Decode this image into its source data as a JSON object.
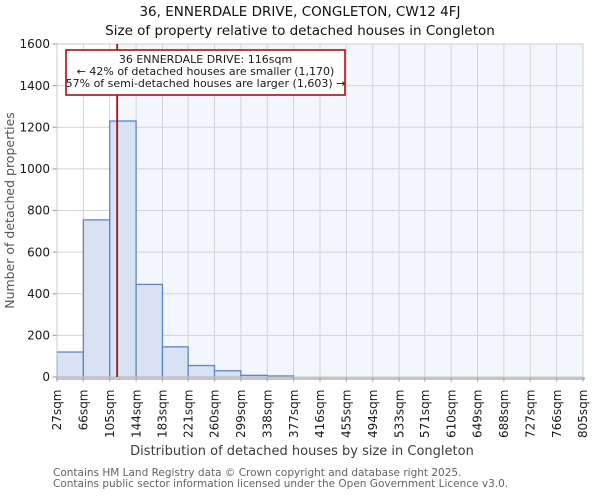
{
  "header": {
    "title": "36, ENNERDALE DRIVE, CONGLETON, CW12 4FJ",
    "subtitle": "Size of property relative to detached houses in Congleton"
  },
  "annotation": {
    "line1": "36 ENNERDALE DRIVE: 116sqm",
    "line2": "← 42% of detached houses are smaller (1,170)",
    "line3": "57% of semi-detached houses are larger (1,603) →"
  },
  "chart_data": {
    "type": "bar",
    "title": "Size of property relative to detached houses in Congleton",
    "xlabel": "Distribution of detached houses by size in Congleton",
    "ylabel": "Number of detached properties",
    "bin_edges_sqm": [
      27,
      66,
      105,
      144,
      183,
      221,
      260,
      299,
      338,
      377,
      416,
      455,
      494,
      533,
      571,
      610,
      649,
      688,
      727,
      766,
      805
    ],
    "x_tick_labels": [
      "27sqm",
      "66sqm",
      "105sqm",
      "144sqm",
      "183sqm",
      "221sqm",
      "260sqm",
      "299sqm",
      "338sqm",
      "377sqm",
      "416sqm",
      "455sqm",
      "494sqm",
      "533sqm",
      "571sqm",
      "610sqm",
      "649sqm",
      "688sqm",
      "727sqm",
      "766sqm",
      "805sqm"
    ],
    "values": [
      120,
      755,
      1230,
      445,
      145,
      55,
      30,
      8,
      5,
      0,
      0,
      0,
      0,
      0,
      0,
      0,
      0,
      0,
      0,
      0
    ],
    "ylim": [
      0,
      1600
    ],
    "y_tick_step": 200,
    "y_tick_labels": [
      "0",
      "200",
      "400",
      "600",
      "800",
      "1000",
      "1200",
      "1400",
      "1600"
    ],
    "marker_value_sqm": 116,
    "grid": true,
    "legend": "none",
    "colors": {
      "bar_fill": "#d8e2f3",
      "bar_stroke": "#5b87c5",
      "marker_line": "#aa1015",
      "annotation_border": "#aa1015",
      "annotation_fill": "#ffffff",
      "shade_right_of_marker": "#f3f6fc",
      "gridline": "#d3d3d3",
      "plot_border": "#cccccc",
      "axis_baseline": "#c6c6c6",
      "tick_mark": "#aaaaaa",
      "tick_label": "#1a1a1a",
      "axis_title": "#3c3c3c",
      "ylabel_color": "#555555",
      "footer_text": "#636363"
    }
  },
  "footer": {
    "line1": "Contains HM Land Registry data © Crown copyright and database right 2025.",
    "line2": "Contains public sector information licensed under the Open Government Licence v3.0."
  }
}
